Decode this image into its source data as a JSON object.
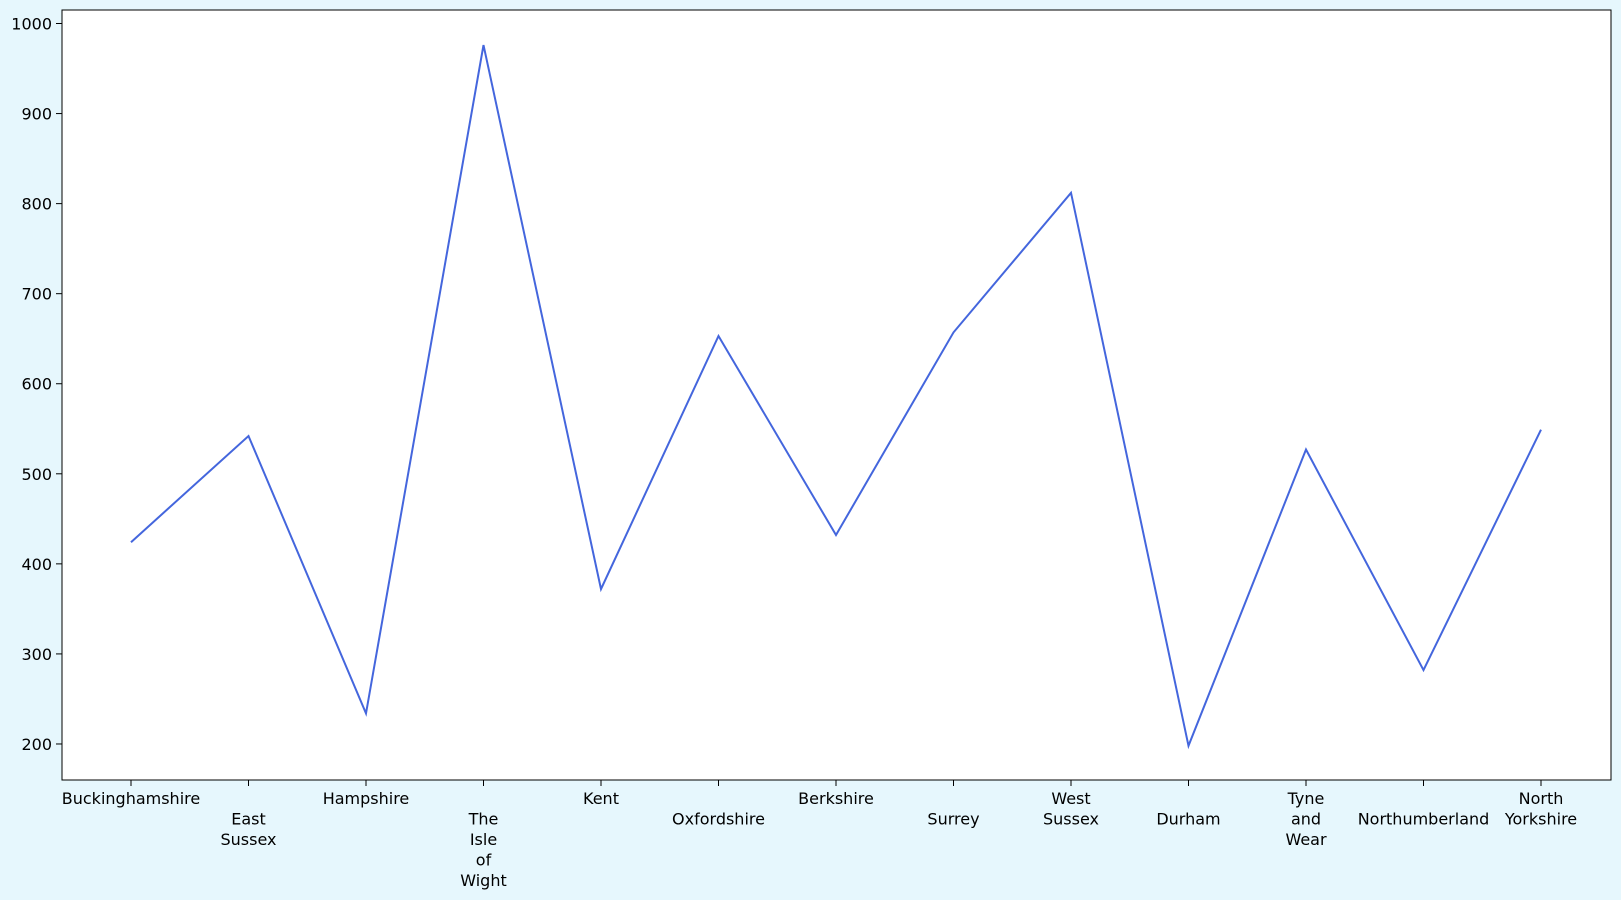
{
  "colors": {
    "background": "#e6f7fd",
    "plot_background": "#ffffff",
    "axis": "#000000",
    "series": "#4466dd"
  },
  "chart_data": {
    "type": "line",
    "title": "",
    "xlabel": "",
    "ylabel": "",
    "ylim": [
      160,
      1015
    ],
    "yticks": [
      200,
      300,
      400,
      500,
      600,
      700,
      800,
      900,
      1000
    ],
    "grid": false,
    "legend": "none",
    "categories": [
      "Buckinghamshire",
      "East Sussex",
      "Hampshire",
      "The Isle of Wight",
      "Kent",
      "Oxfordshire",
      "Berkshire",
      "Surrey",
      "West Sussex",
      "Durham",
      "Tyne and Wear",
      "Northumberland",
      "North Yorkshire"
    ],
    "category_label_lines": [
      [
        "Buckinghamshire"
      ],
      [
        "",
        "East",
        "Sussex"
      ],
      [
        "Hampshire"
      ],
      [
        "",
        "The",
        "Isle",
        "of",
        "Wight"
      ],
      [
        "Kent"
      ],
      [
        "",
        "Oxfordshire"
      ],
      [
        "Berkshire"
      ],
      [
        "",
        "Surrey"
      ],
      [
        "West",
        "Sussex"
      ],
      [
        "",
        "Durham"
      ],
      [
        "Tyne",
        "and",
        "Wear"
      ],
      [
        "",
        "Northumberland"
      ],
      [
        "North",
        "Yorkshire"
      ]
    ],
    "series": [
      {
        "values": [
          424,
          542,
          234,
          976,
          372,
          653,
          432,
          657,
          812,
          198,
          527,
          282,
          549
        ]
      }
    ]
  }
}
